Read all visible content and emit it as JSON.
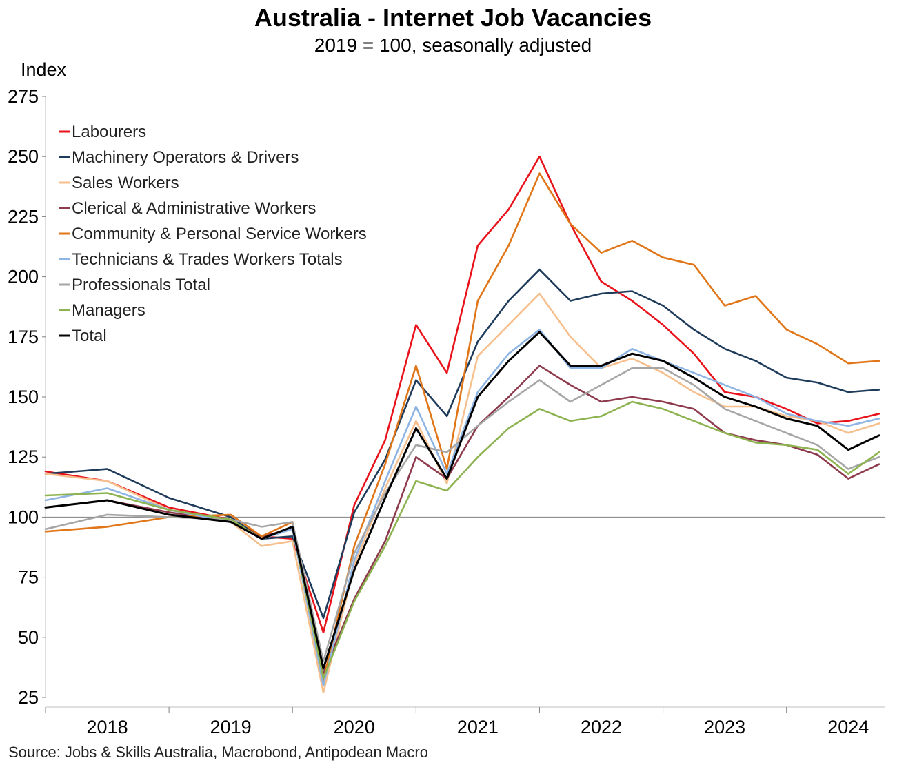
{
  "chart_data": {
    "type": "line",
    "title": "Australia - Internet Job Vacancies",
    "subtitle": "2019 = 100, seasonally adjusted",
    "ylabel": "Index",
    "xlabel": "",
    "ylim": [
      25,
      275
    ],
    "yticks": [
      25,
      50,
      75,
      100,
      125,
      150,
      175,
      200,
      225,
      250,
      275
    ],
    "xlim": [
      2018.0,
      2024.8
    ],
    "xtick_labels": [
      "2018",
      "2019",
      "2020",
      "2021",
      "2022",
      "2023",
      "2024"
    ],
    "reference_line": 100,
    "legend_position": "top-left",
    "grid": false,
    "series": [
      {
        "name": "Labourers",
        "color": "#e8121b",
        "x": [
          2018.0,
          2018.5,
          2019.0,
          2019.5,
          2019.75,
          2020.0,
          2020.25,
          2020.5,
          2020.75,
          2021.0,
          2021.25,
          2021.5,
          2021.75,
          2022.0,
          2022.25,
          2022.5,
          2022.75,
          2023.0,
          2023.25,
          2023.5,
          2023.75,
          2024.0,
          2024.25,
          2024.5,
          2024.75
        ],
        "y": [
          119,
          115,
          104,
          99,
          92,
          91,
          52,
          105,
          132,
          180,
          160,
          213,
          228,
          250,
          222,
          198,
          190,
          180,
          168,
          152,
          150,
          145,
          139,
          140,
          143
        ]
      },
      {
        "name": "Machinery Operators & Drivers",
        "color": "#1f3b5a",
        "x": [
          2018.0,
          2018.5,
          2019.0,
          2019.5,
          2019.75,
          2020.0,
          2020.25,
          2020.5,
          2020.75,
          2021.0,
          2021.25,
          2021.5,
          2021.75,
          2022.0,
          2022.25,
          2022.5,
          2022.75,
          2023.0,
          2023.25,
          2023.5,
          2023.75,
          2024.0,
          2024.25,
          2024.5,
          2024.75
        ],
        "y": [
          118,
          120,
          108,
          100,
          91,
          92,
          58,
          102,
          124,
          157,
          142,
          173,
          190,
          203,
          190,
          193,
          194,
          188,
          178,
          170,
          165,
          158,
          156,
          152,
          153
        ]
      },
      {
        "name": "Sales Workers",
        "color": "#f6bf8e",
        "x": [
          2018.0,
          2018.5,
          2019.0,
          2019.5,
          2019.75,
          2020.0,
          2020.25,
          2020.5,
          2020.75,
          2021.0,
          2021.25,
          2021.5,
          2021.75,
          2022.0,
          2022.25,
          2022.5,
          2022.75,
          2023.0,
          2023.25,
          2023.5,
          2023.75,
          2024.0,
          2024.25,
          2024.5,
          2024.75
        ],
        "y": [
          118,
          115,
          103,
          98,
          88,
          90,
          27,
          80,
          112,
          140,
          114,
          167,
          180,
          193,
          175,
          162,
          166,
          160,
          152,
          146,
          146,
          142,
          140,
          135,
          139
        ]
      },
      {
        "name": "Clerical & Administrative Workers",
        "color": "#8e3a4d",
        "x": [
          2018.0,
          2018.5,
          2019.0,
          2019.5,
          2019.75,
          2020.0,
          2020.25,
          2020.5,
          2020.75,
          2021.0,
          2021.25,
          2021.5,
          2021.75,
          2022.0,
          2022.25,
          2022.5,
          2022.75,
          2023.0,
          2023.25,
          2023.5,
          2023.75,
          2024.0,
          2024.25,
          2024.5,
          2024.75
        ],
        "y": [
          104,
          107,
          102,
          98,
          92,
          95,
          35,
          66,
          90,
          125,
          116,
          138,
          150,
          163,
          155,
          148,
          150,
          148,
          145,
          135,
          132,
          130,
          126,
          116,
          122
        ]
      },
      {
        "name": "Community & Personal Service Workers",
        "color": "#e07618",
        "x": [
          2018.0,
          2018.5,
          2019.0,
          2019.5,
          2019.75,
          2020.0,
          2020.25,
          2020.5,
          2020.75,
          2021.0,
          2021.25,
          2021.5,
          2021.75,
          2022.0,
          2022.25,
          2022.5,
          2022.75,
          2023.0,
          2023.25,
          2023.5,
          2023.75,
          2024.0,
          2024.25,
          2024.5,
          2024.75
        ],
        "y": [
          94,
          96,
          100,
          101,
          92,
          98,
          32,
          88,
          122,
          163,
          120,
          190,
          213,
          243,
          222,
          210,
          215,
          208,
          205,
          188,
          192,
          178,
          172,
          164,
          165
        ]
      },
      {
        "name": "Technicians & Trades Workers Totals",
        "color": "#8db4e2",
        "x": [
          2018.0,
          2018.5,
          2019.0,
          2019.5,
          2019.75,
          2020.0,
          2020.25,
          2020.5,
          2020.75,
          2021.0,
          2021.25,
          2021.5,
          2021.75,
          2022.0,
          2022.25,
          2022.5,
          2022.75,
          2023.0,
          2023.25,
          2023.5,
          2023.75,
          2024.0,
          2024.25,
          2024.5,
          2024.75
        ],
        "y": [
          107,
          112,
          103,
          98,
          91,
          95,
          30,
          82,
          115,
          146,
          118,
          152,
          168,
          178,
          162,
          162,
          170,
          165,
          160,
          155,
          150,
          143,
          140,
          138,
          141
        ]
      },
      {
        "name": "Professionals Total",
        "color": "#a6a6a6",
        "x": [
          2018.0,
          2018.5,
          2019.0,
          2019.5,
          2019.75,
          2020.0,
          2020.25,
          2020.5,
          2020.75,
          2021.0,
          2021.25,
          2021.5,
          2021.75,
          2022.0,
          2022.25,
          2022.5,
          2022.75,
          2023.0,
          2023.25,
          2023.5,
          2023.75,
          2024.0,
          2024.25,
          2024.5,
          2024.75
        ],
        "y": [
          95,
          101,
          100,
          99,
          96,
          98,
          40,
          85,
          110,
          130,
          127,
          138,
          148,
          157,
          148,
          155,
          162,
          162,
          155,
          145,
          140,
          135,
          130,
          120,
          125
        ]
      },
      {
        "name": "Managers",
        "color": "#8db350",
        "x": [
          2018.0,
          2018.5,
          2019.0,
          2019.5,
          2019.75,
          2020.0,
          2020.25,
          2020.5,
          2020.75,
          2021.0,
          2021.25,
          2021.5,
          2021.75,
          2022.0,
          2022.25,
          2022.5,
          2022.75,
          2023.0,
          2023.25,
          2023.5,
          2023.75,
          2024.0,
          2024.25,
          2024.5,
          2024.75
        ],
        "y": [
          109,
          110,
          103,
          99,
          91,
          96,
          33,
          65,
          88,
          115,
          111,
          125,
          137,
          145,
          140,
          142,
          148,
          145,
          140,
          135,
          131,
          130,
          128,
          118,
          127
        ]
      },
      {
        "name": "Total",
        "color": "#000000",
        "x": [
          2018.0,
          2018.5,
          2019.0,
          2019.5,
          2019.75,
          2020.0,
          2020.25,
          2020.5,
          2020.75,
          2021.0,
          2021.25,
          2021.5,
          2021.75,
          2022.0,
          2022.25,
          2022.5,
          2022.75,
          2023.0,
          2023.25,
          2023.5,
          2023.75,
          2024.0,
          2024.25,
          2024.5,
          2024.75
        ],
        "y": [
          104,
          107,
          101,
          98,
          91,
          96,
          37,
          78,
          108,
          137,
          116,
          150,
          165,
          177,
          163,
          163,
          168,
          165,
          158,
          150,
          146,
          141,
          138,
          128,
          134
        ]
      }
    ]
  },
  "footer": {
    "source": "Source: Jobs & Skills Australia, Macrobond, Antipodean Macro"
  }
}
